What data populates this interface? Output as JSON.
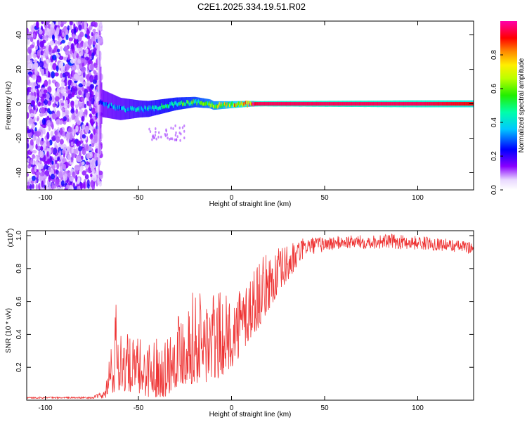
{
  "title": "C2E1.2025.334.19.51.R02",
  "chart_data": [
    {
      "type": "heatmap",
      "xlabel": "Height of straight line (km)",
      "ylabel": "Frequency (Hz)",
      "xlim": [
        -110,
        130
      ],
      "ylim": [
        -50,
        48
      ],
      "xticks": [
        -100,
        -50,
        0,
        50,
        100
      ],
      "yticks": [
        -40,
        -20,
        0,
        20,
        40
      ],
      "grid": false,
      "description_points": [
        {
          "x": -110,
          "y_spread": 48,
          "amp": 0.12
        },
        {
          "x": -72,
          "y_spread": 48,
          "amp": 0.12
        },
        {
          "x": -70,
          "y_spread": 8,
          "amp": 0.35
        },
        {
          "x": -50,
          "y_spread": 5,
          "amp": 0.45
        },
        {
          "x": -20,
          "y_spread": 3,
          "amp": 0.6
        },
        {
          "x": 0,
          "y_spread": 2,
          "amp": 0.8
        },
        {
          "x": 15,
          "y_spread": 1.5,
          "amp": 0.95
        },
        {
          "x": 100,
          "y_spread": 2,
          "amp": 0.95
        },
        {
          "x": 130,
          "y_spread": 2,
          "amp": 0.9
        }
      ],
      "line_center": [
        {
          "x": -72,
          "y": 1
        },
        {
          "x": -60,
          "y": -3
        },
        {
          "x": -45,
          "y": -3
        },
        {
          "x": -30,
          "y": 0
        },
        {
          "x": -20,
          "y": 1
        },
        {
          "x": -12,
          "y": 0
        },
        {
          "x": -10,
          "y": -1
        },
        {
          "x": 10,
          "y": 0
        },
        {
          "x": 130,
          "y": 0
        }
      ]
    },
    {
      "type": "colorbar",
      "label": "Normalized spectral amplitude",
      "range": [
        0,
        1
      ],
      "ticks": [
        0.0,
        0.2,
        0.4,
        0.6,
        0.8
      ],
      "tick_labels": [
        "0.0",
        "0.2",
        "0.4",
        "0.6",
        "0.8"
      ]
    },
    {
      "type": "line",
      "xlabel": "Height of straight line (km)",
      "ylabel": "SNR (10 * v/v)",
      "scale_label": "(x10",
      "scale_exp": "4",
      "xlim": [
        -110,
        130
      ],
      "ylim": [
        0,
        1.03
      ],
      "xticks": [
        -100,
        -50,
        0,
        50,
        100
      ],
      "yticks": [
        0.2,
        0.4,
        0.6,
        0.8,
        1.0
      ],
      "color": "#ee3333",
      "envelope": [
        {
          "x": -110,
          "lo": 0.01,
          "hi": 0.02
        },
        {
          "x": -75,
          "lo": 0.01,
          "hi": 0.02
        },
        {
          "x": -68,
          "lo": 0.01,
          "hi": 0.06
        },
        {
          "x": -65,
          "lo": 0.02,
          "hi": 0.35
        },
        {
          "x": -63,
          "lo": 0.04,
          "hi": 0.62
        },
        {
          "x": -55,
          "lo": 0.05,
          "hi": 0.38
        },
        {
          "x": -45,
          "lo": 0.02,
          "hi": 0.38
        },
        {
          "x": -35,
          "lo": 0.02,
          "hi": 0.4
        },
        {
          "x": -30,
          "lo": 0.08,
          "hi": 0.55
        },
        {
          "x": -22,
          "lo": 0.1,
          "hi": 0.67
        },
        {
          "x": -10,
          "lo": 0.1,
          "hi": 0.68
        },
        {
          "x": 0,
          "lo": 0.2,
          "hi": 0.62
        },
        {
          "x": 10,
          "lo": 0.35,
          "hi": 0.82
        },
        {
          "x": 20,
          "lo": 0.55,
          "hi": 0.9
        },
        {
          "x": 30,
          "lo": 0.72,
          "hi": 0.95
        },
        {
          "x": 40,
          "lo": 0.88,
          "hi": 0.99
        },
        {
          "x": 60,
          "lo": 0.92,
          "hi": 1.0
        },
        {
          "x": 85,
          "lo": 0.92,
          "hi": 1.01
        },
        {
          "x": 110,
          "lo": 0.91,
          "hi": 0.99
        },
        {
          "x": 130,
          "lo": 0.89,
          "hi": 0.96
        }
      ]
    }
  ]
}
